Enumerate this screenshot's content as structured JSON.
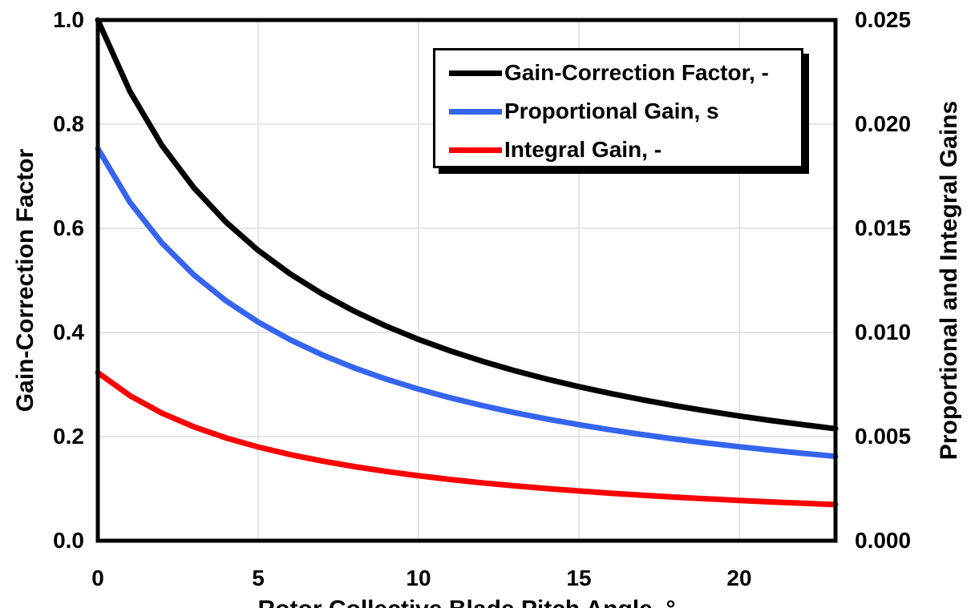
{
  "page": {
    "background": "#ffffff"
  },
  "colors": {
    "axis": "#000000",
    "grid": "#dedede",
    "black_series": "#000000",
    "blue_series": "#3565f0",
    "red_series": "#ff0000"
  },
  "legend": {
    "items": [
      {
        "label": "Gain-Correction Factor, -",
        "color": "#000000"
      },
      {
        "label": "Proportional Gain, s",
        "color": "#3565f0"
      },
      {
        "label": "Integral Gain, -",
        "color": "#ff0000"
      }
    ]
  },
  "chart_data": {
    "type": "line",
    "title": "",
    "x_label": "Rotor Collective Blade Pitch Angle, °",
    "y_left_label": "Gain-Correction Factor",
    "y_right_label": "Proportional and Integral Gains",
    "x_range": [
      0,
      23
    ],
    "y_left_range": [
      0,
      1.0
    ],
    "y_right_range": [
      0,
      0.025
    ],
    "x_ticks": [
      "0",
      "5",
      "10",
      "15",
      "20"
    ],
    "y_left_ticks": [
      "1.0",
      "0.8",
      "0.6",
      "0.4",
      "0.2",
      "0.0"
    ],
    "y_right_ticks": [
      "0.025",
      "0.020",
      "0.015",
      "0.010",
      "0.005",
      "0.000"
    ],
    "grid": true,
    "legend_position": "top-center-inside",
    "x": [
      0,
      1,
      2,
      3,
      4,
      5,
      6,
      7,
      8,
      9,
      10,
      11,
      12,
      13,
      14,
      15,
      16,
      17,
      18,
      19,
      20,
      21,
      22,
      23
    ],
    "series": [
      {
        "name": "Gain-Correction Factor, -",
        "axis": "left",
        "color": "#000000",
        "values": [
          1.0,
          0.8631,
          0.7591,
          0.6775,
          0.6117,
          0.5576,
          0.5123,
          0.4738,
          0.4406,
          0.4119,
          0.3866,
          0.3643,
          0.3444,
          0.3265,
          0.3104,
          0.2959,
          0.2826,
          0.2705,
          0.2593,
          0.2491,
          0.2396,
          0.2308,
          0.2227,
          0.2151
        ]
      },
      {
        "name": "Proportional Gain, s",
        "axis": "right",
        "color": "#3565f0",
        "values": [
          0.018827,
          0.016249,
          0.014291,
          0.012755,
          0.011517,
          0.010498,
          0.009645,
          0.00892,
          0.008296,
          0.007754,
          0.007278,
          0.006858,
          0.006483,
          0.006147,
          0.005844,
          0.00557,
          0.00532,
          0.005092,
          0.004882,
          0.004689,
          0.004511,
          0.004346,
          0.004192,
          0.004049
        ]
      },
      {
        "name": "Integral Gain, -",
        "axis": "right",
        "color": "#ff0000",
        "values": [
          0.008069,
          0.006964,
          0.006125,
          0.005467,
          0.004936,
          0.004499,
          0.004133,
          0.003823,
          0.003556,
          0.003323,
          0.003119,
          0.002939,
          0.002778,
          0.002634,
          0.002505,
          0.002387,
          0.00228,
          0.002182,
          0.002092,
          0.00201,
          0.001933,
          0.001862,
          0.001797,
          0.001735
        ]
      }
    ]
  }
}
